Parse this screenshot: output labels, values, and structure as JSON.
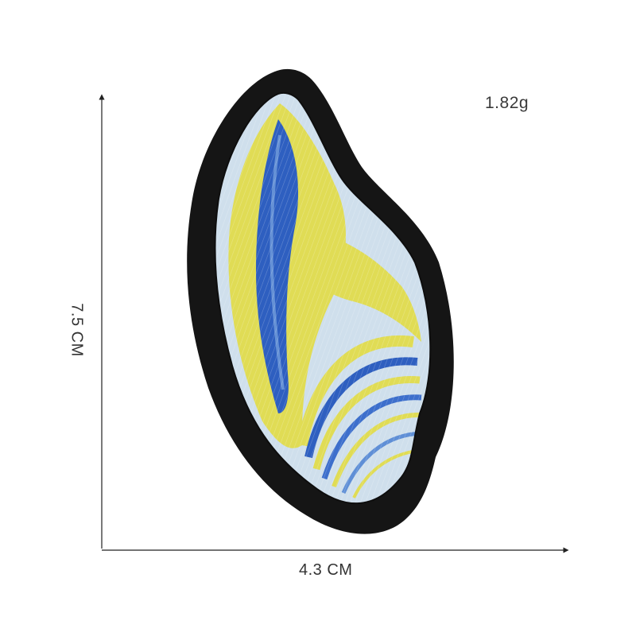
{
  "product": {
    "weight": "1.82g",
    "width": "4.3 CM",
    "height": "7.5 CM"
  },
  "colors": {
    "background": "#ffffff",
    "border": "#151515",
    "light_blue": "#c9dbea",
    "yellow": "#e2e05a",
    "blue": "#2c5fbd",
    "dimension_line": "#222222"
  },
  "icons": {
    "patch": "seashell-embroidered-patch"
  }
}
